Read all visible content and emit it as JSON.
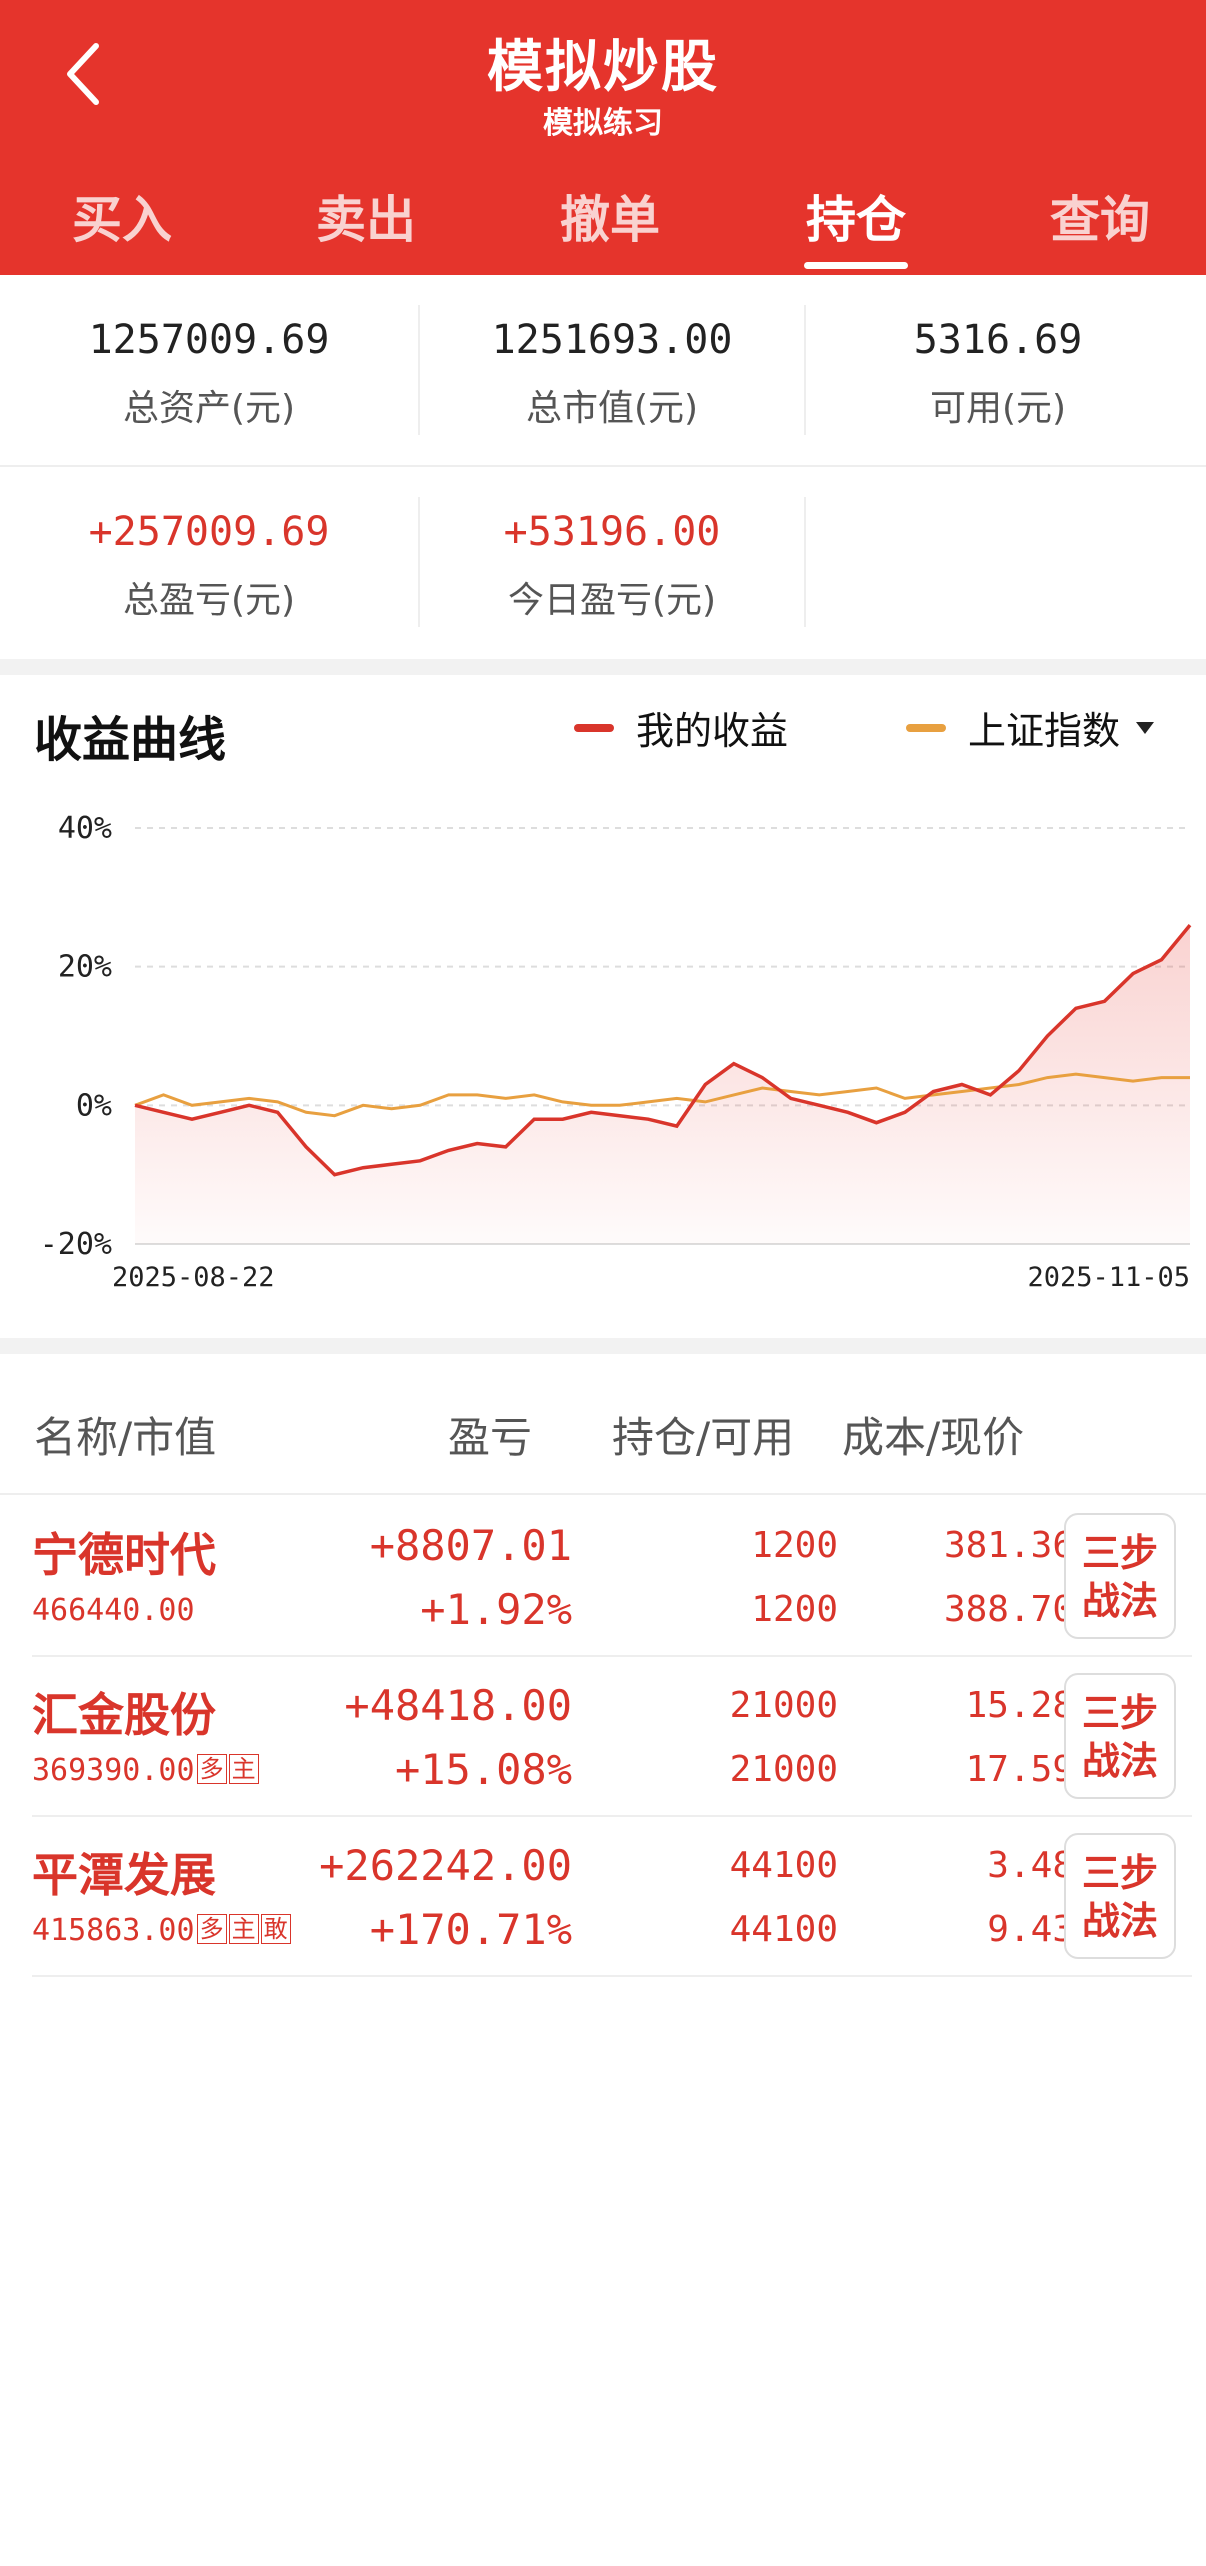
{
  "header": {
    "title": "模拟炒股",
    "subtitle": "模拟练习"
  },
  "tabs": [
    {
      "label": "买入",
      "active": false
    },
    {
      "label": "卖出",
      "active": false
    },
    {
      "label": "撤单",
      "active": false
    },
    {
      "label": "持仓",
      "active": true
    },
    {
      "label": "查询",
      "active": false
    }
  ],
  "summary": {
    "total_assets": {
      "value": "1257009.69",
      "label": "总资产(元)"
    },
    "market_value": {
      "value": "1251693.00",
      "label": "总市值(元)"
    },
    "available": {
      "value": "5316.69",
      "label": "可用(元)"
    },
    "total_pnl": {
      "value": "+257009.69",
      "label": "总盈亏(元)"
    },
    "today_pnl": {
      "value": "+53196.00",
      "label": "今日盈亏(元)"
    }
  },
  "chart_section": {
    "title": "收益曲线",
    "legend_mine": "我的收益",
    "legend_index": "上证指数"
  },
  "chart_data": {
    "type": "line",
    "x_start": "2025-08-22",
    "x_end": "2025-11-05",
    "ylim": [
      -20,
      40
    ],
    "yticks": [
      "40%",
      "20%",
      "0%",
      "-20%"
    ],
    "grid": true,
    "series": [
      {
        "name": "我的收益",
        "color": "#d9352b",
        "values": [
          0,
          -1,
          -2,
          -1,
          0,
          -1,
          -6,
          -10,
          -9,
          -8.5,
          -8,
          -6.5,
          -5.5,
          -6,
          -2,
          -2,
          -1,
          -1.5,
          -2,
          -3,
          3,
          6,
          4,
          1,
          0,
          -1,
          -2.5,
          -1,
          2,
          3,
          1.5,
          5,
          10,
          14,
          15,
          19,
          21,
          26
        ]
      },
      {
        "name": "上证指数",
        "color": "#e8a040",
        "values": [
          0,
          1.5,
          0,
          0.5,
          1,
          0.5,
          -1,
          -1.5,
          0,
          -0.5,
          0,
          1.5,
          1.5,
          1,
          1.5,
          0.5,
          0,
          0,
          0.5,
          1,
          0.5,
          1.5,
          2.5,
          2,
          1.5,
          2,
          2.5,
          1,
          1.5,
          2,
          2.5,
          3,
          4,
          4.5,
          4,
          3.5,
          4,
          4
        ]
      }
    ]
  },
  "table": {
    "headers": [
      "名称/市值",
      "盈亏",
      "持仓/可用",
      "成本/现价"
    ],
    "action_label": "三步战法",
    "rows": [
      {
        "name": "宁德时代",
        "market_value": "466440.00",
        "tags": [],
        "pnl": "+8807.01",
        "pnl_pct": "+1.92%",
        "position": "1200",
        "available": "1200",
        "cost": "381.36",
        "price": "388.70"
      },
      {
        "name": "汇金股份",
        "market_value": "369390.00",
        "tags": [
          "多",
          "主"
        ],
        "pnl": "+48418.00",
        "pnl_pct": "+15.08%",
        "position": "21000",
        "available": "21000",
        "cost": "15.28",
        "price": "17.59"
      },
      {
        "name": "平潭发展",
        "market_value": "415863.00",
        "tags": [
          "多",
          "主",
          "敢"
        ],
        "pnl": "+262242.00",
        "pnl_pct": "+170.71%",
        "position": "44100",
        "available": "44100",
        "cost": "3.48",
        "price": "9.43"
      }
    ]
  },
  "colors": {
    "brand": "#e5342c",
    "up": "#d9352b",
    "index_line": "#e8a040"
  },
  "icons": {
    "back": "chevron-left-icon",
    "dropdown": "triangle-down-icon"
  }
}
